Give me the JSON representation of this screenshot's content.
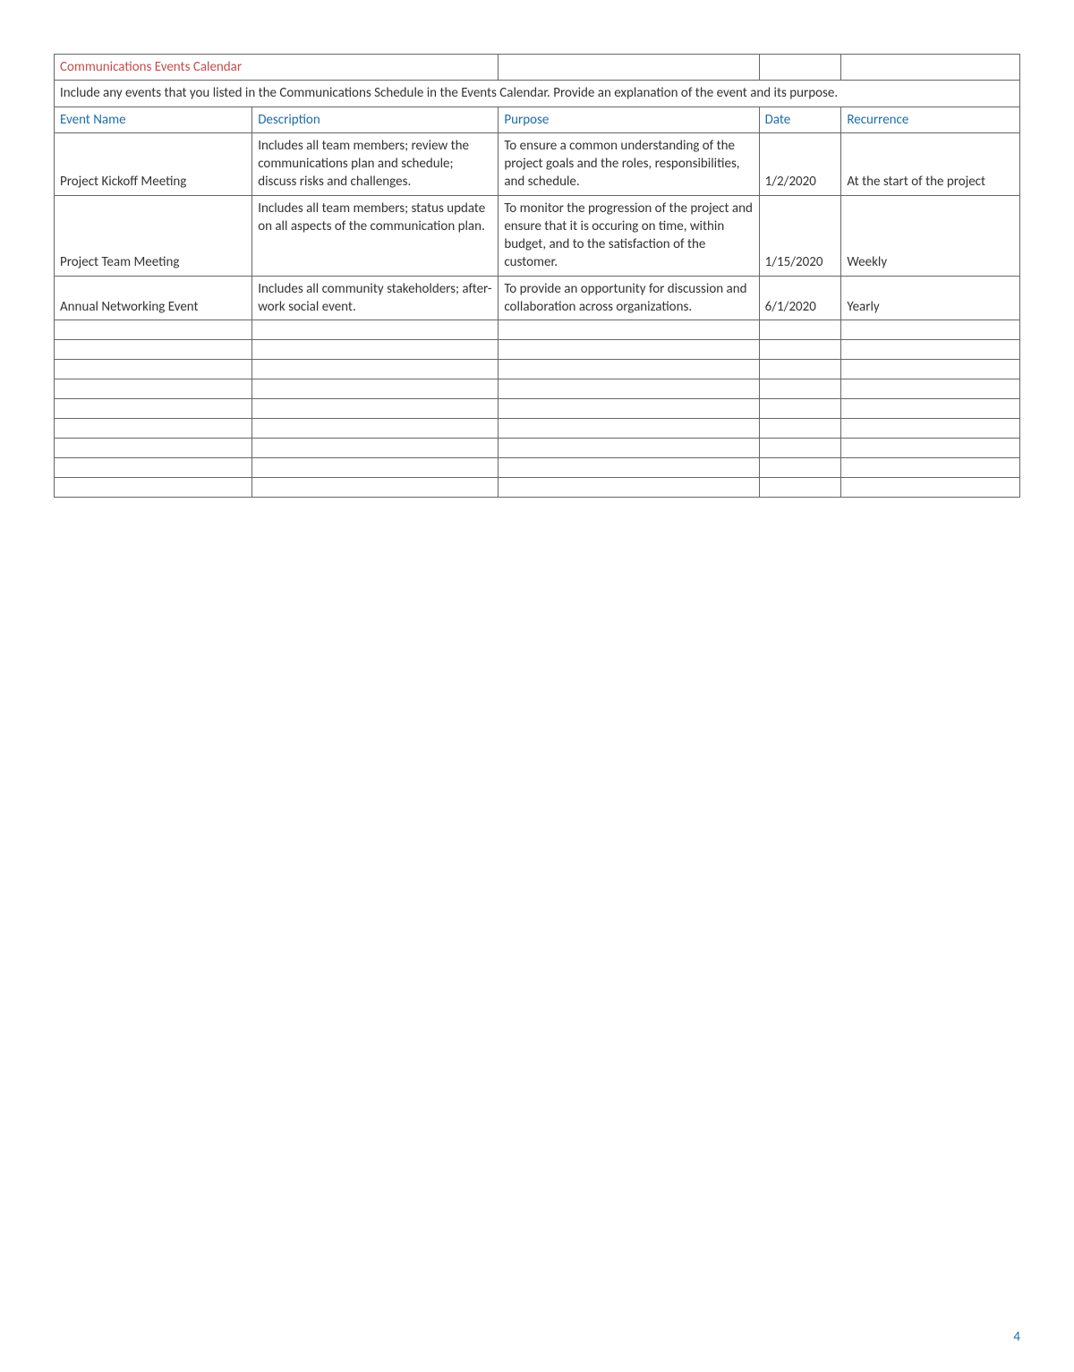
{
  "title": "Communications Events Calendar",
  "instruction": "Include any events that you listed in the Communications Schedule in the Events Calendar. Provide an explanation of the event and its purpose.",
  "headers": {
    "event_name": "Event Name",
    "description": "Description",
    "purpose": "Purpose",
    "date": "Date",
    "recurrence": "Recurrence"
  },
  "rows": [
    {
      "event_name": "Project Kickoff Meeting",
      "description": "Includes all team members; review the communications plan and schedule; discuss risks and challenges.",
      "purpose": "To ensure a common understanding of the project goals and the roles, responsibilities, and schedule.",
      "date": "1/2/2020",
      "recurrence": "At the start of the project"
    },
    {
      "event_name": "Project Team Meeting",
      "description": "Includes all team members; status update on all aspects of the communication plan.",
      "purpose": "To monitor the progression of the project and ensure that it is occuring on time, within budget, and to the satisfaction of the customer.",
      "date": "1/15/2020",
      "recurrence": "Weekly"
    },
    {
      "event_name": "Annual Networking Event",
      "description": "Includes all community stakeholders; after-work social event.",
      "purpose": "To provide an opportunity for discussion and collaboration across organizations.",
      "date": "6/1/2020",
      "recurrence": "Yearly"
    }
  ],
  "empty_row_count": 9,
  "page_number": "4",
  "colors": {
    "title": "#c0504d",
    "header": "#1f6ea7",
    "border": "#666666",
    "text": "#333333",
    "page_number": "#1f6ea7"
  }
}
